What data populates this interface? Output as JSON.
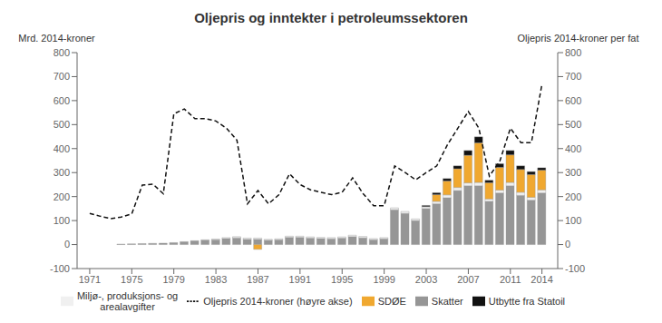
{
  "chart_data": {
    "type": "bar",
    "title": "Oljepris og inntekter i petroleumssektoren",
    "ylabel": "Mrd. 2014-kroner",
    "y2label": "Oljepris 2014-kroner per fat",
    "x": [
      1971,
      1972,
      1973,
      1974,
      1975,
      1976,
      1977,
      1978,
      1979,
      1980,
      1981,
      1982,
      1983,
      1984,
      1985,
      1986,
      1987,
      1988,
      1989,
      1990,
      1991,
      1992,
      1993,
      1994,
      1995,
      1996,
      1997,
      1998,
      1999,
      2000,
      2001,
      2002,
      2003,
      2004,
      2005,
      2006,
      2007,
      2008,
      2009,
      2010,
      2011,
      2012,
      2013,
      2014
    ],
    "xlim": [
      1969.8,
      2015.5
    ],
    "xticks": [
      1971,
      1975,
      1979,
      1983,
      1987,
      1991,
      1995,
      1999,
      2003,
      2007,
      2011,
      2014
    ],
    "ylim": [
      -100,
      800
    ],
    "yticks": [
      -100,
      0,
      100,
      200,
      300,
      400,
      500,
      600,
      700,
      800
    ],
    "y2lim": [
      -100,
      800
    ],
    "y2ticks": [
      -100,
      0,
      100,
      200,
      300,
      400,
      500,
      600,
      700,
      800
    ],
    "stacked": true,
    "grid": false,
    "legend": "bottom",
    "series": [
      {
        "name": "Skatter",
        "type": "bar",
        "color": "#969696",
        "values": [
          0,
          0,
          0,
          2,
          3,
          4,
          5,
          6,
          8,
          12,
          15,
          18,
          20,
          25,
          28,
          22,
          22,
          18,
          20,
          30,
          30,
          27,
          25,
          24,
          27,
          33,
          28,
          20,
          24,
          145,
          130,
          100,
          150,
          170,
          195,
          225,
          245,
          245,
          180,
          215,
          245,
          205,
          185,
          215
        ]
      },
      {
        "name": "Miljø-, produksjons- og\narealavgifter",
        "type": "bar",
        "color": "#f0f0f0",
        "values": [
          0,
          0,
          0,
          0,
          0,
          0,
          0,
          0,
          0,
          0,
          1,
          2,
          3,
          4,
          5,
          5,
          5,
          4,
          4,
          5,
          5,
          5,
          5,
          5,
          5,
          6,
          6,
          5,
          5,
          8,
          8,
          7,
          8,
          10,
          12,
          13,
          12,
          14,
          10,
          12,
          14,
          13,
          12,
          13
        ]
      },
      {
        "name": "SDØE",
        "type": "bar",
        "color": "#f0a830",
        "values": [
          0,
          0,
          0,
          0,
          0,
          0,
          0,
          0,
          0,
          0,
          0,
          0,
          0,
          0,
          0,
          0,
          -20,
          0,
          0,
          0,
          0,
          0,
          0,
          0,
          0,
          0,
          0,
          0,
          0,
          0,
          0,
          0,
          0,
          28,
          58,
          78,
          115,
          165,
          68,
          95,
          115,
          95,
          95,
          82
        ]
      },
      {
        "name": "Utbytte fra Statoil",
        "type": "bar",
        "color": "#111111",
        "values": [
          0,
          0,
          0,
          0,
          0,
          0,
          0,
          0,
          0,
          0,
          0,
          0,
          0,
          0,
          0,
          0,
          0,
          0,
          0,
          0,
          0,
          0,
          0,
          0,
          0,
          0,
          0,
          0,
          0,
          0,
          0,
          0,
          5,
          8,
          10,
          12,
          20,
          25,
          10,
          15,
          18,
          15,
          12,
          10
        ]
      },
      {
        "name": "Oljepris 2014-kroner (høyre akse)",
        "type": "line",
        "axis": "y2",
        "color": "#111111",
        "line_style": "dashed",
        "marker": "none",
        "values": [
          130,
          118,
          108,
          115,
          128,
          248,
          252,
          212,
          545,
          565,
          525,
          525,
          515,
          485,
          435,
          170,
          225,
          170,
          208,
          295,
          250,
          228,
          218,
          208,
          218,
          278,
          212,
          162,
          162,
          328,
          300,
          270,
          300,
          328,
          415,
          485,
          555,
          485,
          285,
          348,
          485,
          425,
          425,
          668
        ]
      }
    ]
  }
}
